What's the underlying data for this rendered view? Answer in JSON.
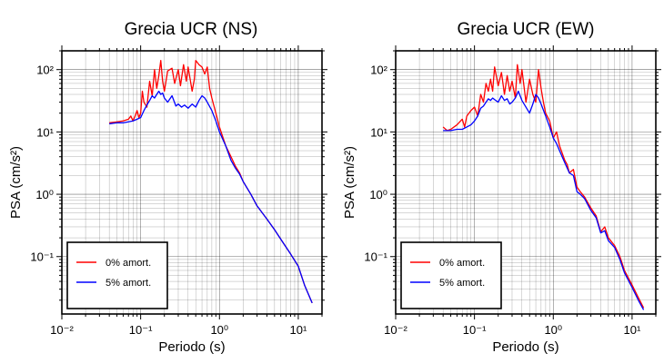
{
  "chart_data": [
    {
      "type": "line",
      "title": "Grecia UCR (NS)",
      "xlabel": "Periodo (s)",
      "ylabel": "PSA (cm/s²)",
      "xscale": "log",
      "yscale": "log",
      "xlim": [
        0.01,
        20
      ],
      "ylim": [
        0.012,
        200
      ],
      "grid": true,
      "legend_position": "bottom-left",
      "xticks": [
        {
          "value": 0.01,
          "label": "10⁻²"
        },
        {
          "value": 0.1,
          "label": "10⁻¹"
        },
        {
          "value": 1,
          "label": "10⁰"
        },
        {
          "value": 10,
          "label": "10¹"
        }
      ],
      "yticks": [
        {
          "value": 0.1,
          "label": "10⁻¹"
        },
        {
          "value": 1,
          "label": "10⁰"
        },
        {
          "value": 10,
          "label": "10¹"
        },
        {
          "value": 100,
          "label": "10²"
        }
      ],
      "series": [
        {
          "name": "0% amort.",
          "color": "#ff0000",
          "points": [
            [
              0.04,
              14
            ],
            [
              0.05,
              14.5
            ],
            [
              0.06,
              15
            ],
            [
              0.07,
              16
            ],
            [
              0.075,
              18
            ],
            [
              0.08,
              15
            ],
            [
              0.085,
              18
            ],
            [
              0.09,
              22
            ],
            [
              0.095,
              17
            ],
            [
              0.1,
              20
            ],
            [
              0.105,
              45
            ],
            [
              0.11,
              30
            ],
            [
              0.12,
              25
            ],
            [
              0.13,
              65
            ],
            [
              0.14,
              38
            ],
            [
              0.15,
              100
            ],
            [
              0.16,
              50
            ],
            [
              0.17,
              80
            ],
            [
              0.18,
              140
            ],
            [
              0.19,
              65
            ],
            [
              0.2,
              45
            ],
            [
              0.22,
              95
            ],
            [
              0.25,
              105
            ],
            [
              0.27,
              60
            ],
            [
              0.3,
              100
            ],
            [
              0.32,
              55
            ],
            [
              0.35,
              120
            ],
            [
              0.38,
              65
            ],
            [
              0.4,
              110
            ],
            [
              0.45,
              45
            ],
            [
              0.48,
              70
            ],
            [
              0.5,
              140
            ],
            [
              0.55,
              120
            ],
            [
              0.6,
              110
            ],
            [
              0.65,
              85
            ],
            [
              0.7,
              110
            ],
            [
              0.75,
              50
            ],
            [
              0.8,
              35
            ],
            [
              0.9,
              20
            ],
            [
              1,
              12
            ],
            [
              1.2,
              6
            ],
            [
              1.4,
              4
            ],
            [
              1.6,
              2.8
            ],
            [
              1.8,
              2.2
            ],
            [
              2,
              1.6
            ],
            [
              2.5,
              1
            ],
            [
              3,
              0.65
            ],
            [
              4,
              0.4
            ],
            [
              5,
              0.27
            ],
            [
              6,
              0.19
            ],
            [
              8,
              0.11
            ],
            [
              10,
              0.07
            ],
            [
              12,
              0.035
            ],
            [
              15,
              0.018
            ]
          ]
        },
        {
          "name": "5% amort.",
          "color": "#0000ff",
          "points": [
            [
              0.04,
              13.5
            ],
            [
              0.05,
              14
            ],
            [
              0.06,
              14
            ],
            [
              0.07,
              14.5
            ],
            [
              0.08,
              15
            ],
            [
              0.09,
              16
            ],
            [
              0.1,
              17
            ],
            [
              0.11,
              22
            ],
            [
              0.12,
              27
            ],
            [
              0.13,
              32
            ],
            [
              0.14,
              38
            ],
            [
              0.15,
              35
            ],
            [
              0.16,
              40
            ],
            [
              0.17,
              45
            ],
            [
              0.18,
              40
            ],
            [
              0.19,
              42
            ],
            [
              0.2,
              35
            ],
            [
              0.22,
              30
            ],
            [
              0.25,
              38
            ],
            [
              0.28,
              26
            ],
            [
              0.3,
              28
            ],
            [
              0.33,
              25
            ],
            [
              0.36,
              27
            ],
            [
              0.4,
              24
            ],
            [
              0.45,
              28
            ],
            [
              0.5,
              25
            ],
            [
              0.55,
              32
            ],
            [
              0.6,
              38
            ],
            [
              0.65,
              35
            ],
            [
              0.7,
              30
            ],
            [
              0.8,
              22
            ],
            [
              0.9,
              15
            ],
            [
              1,
              10
            ],
            [
              1.2,
              6
            ],
            [
              1.4,
              3.5
            ],
            [
              1.6,
              2.6
            ],
            [
              1.8,
              2.1
            ],
            [
              2,
              1.6
            ],
            [
              2.5,
              1
            ],
            [
              3,
              0.65
            ],
            [
              4,
              0.4
            ],
            [
              5,
              0.27
            ],
            [
              6,
              0.19
            ],
            [
              8,
              0.11
            ],
            [
              10,
              0.07
            ],
            [
              12,
              0.035
            ],
            [
              15,
              0.018
            ]
          ]
        }
      ]
    },
    {
      "type": "line",
      "title": "Grecia UCR (EW)",
      "xlabel": "Periodo (s)",
      "ylabel": "PSA (cm/s²)",
      "xscale": "log",
      "yscale": "log",
      "xlim": [
        0.01,
        20
      ],
      "ylim": [
        0.012,
        200
      ],
      "grid": true,
      "legend_position": "bottom-left",
      "xticks": [
        {
          "value": 0.01,
          "label": "10⁻²"
        },
        {
          "value": 0.1,
          "label": "10⁻¹"
        },
        {
          "value": 1,
          "label": "10⁰"
        },
        {
          "value": 10,
          "label": "10¹"
        }
      ],
      "yticks": [
        {
          "value": 0.1,
          "label": "10⁻¹"
        },
        {
          "value": 1,
          "label": "10⁰"
        },
        {
          "value": 10,
          "label": "10¹"
        },
        {
          "value": 100,
          "label": "10²"
        }
      ],
      "series": [
        {
          "name": "0% amort.",
          "color": "#ff0000",
          "points": [
            [
              0.04,
              12
            ],
            [
              0.045,
              10.5
            ],
            [
              0.05,
              11
            ],
            [
              0.06,
              13
            ],
            [
              0.07,
              16
            ],
            [
              0.075,
              12
            ],
            [
              0.08,
              18
            ],
            [
              0.09,
              22
            ],
            [
              0.1,
              25
            ],
            [
              0.11,
              18
            ],
            [
              0.12,
              40
            ],
            [
              0.13,
              30
            ],
            [
              0.14,
              60
            ],
            [
              0.15,
              45
            ],
            [
              0.16,
              70
            ],
            [
              0.17,
              45
            ],
            [
              0.18,
              110
            ],
            [
              0.2,
              55
            ],
            [
              0.22,
              90
            ],
            [
              0.24,
              40
            ],
            [
              0.26,
              80
            ],
            [
              0.28,
              45
            ],
            [
              0.3,
              65
            ],
            [
              0.33,
              35
            ],
            [
              0.35,
              120
            ],
            [
              0.38,
              60
            ],
            [
              0.4,
              100
            ],
            [
              0.45,
              30
            ],
            [
              0.5,
              70
            ],
            [
              0.55,
              40
            ],
            [
              0.6,
              30
            ],
            [
              0.65,
              100
            ],
            [
              0.7,
              50
            ],
            [
              0.75,
              30
            ],
            [
              0.8,
              20
            ],
            [
              0.9,
              15
            ],
            [
              1,
              8
            ],
            [
              1.1,
              10
            ],
            [
              1.2,
              6
            ],
            [
              1.4,
              3.5
            ],
            [
              1.5,
              3
            ],
            [
              1.6,
              2.2
            ],
            [
              1.8,
              2.5
            ],
            [
              2,
              1.3
            ],
            [
              2.2,
              1.1
            ],
            [
              2.5,
              0.9
            ],
            [
              3,
              0.6
            ],
            [
              3.5,
              0.45
            ],
            [
              4,
              0.25
            ],
            [
              4.5,
              0.3
            ],
            [
              5,
              0.2
            ],
            [
              6,
              0.15
            ],
            [
              7,
              0.1
            ],
            [
              8,
              0.06
            ],
            [
              10,
              0.035
            ],
            [
              12,
              0.022
            ],
            [
              14,
              0.015
            ]
          ]
        },
        {
          "name": "5% amort.",
          "color": "#0000ff",
          "points": [
            [
              0.04,
              10.5
            ],
            [
              0.05,
              10.5
            ],
            [
              0.06,
              11
            ],
            [
              0.07,
              11
            ],
            [
              0.08,
              12
            ],
            [
              0.09,
              13
            ],
            [
              0.1,
              15
            ],
            [
              0.11,
              18
            ],
            [
              0.12,
              24
            ],
            [
              0.13,
              26
            ],
            [
              0.14,
              30
            ],
            [
              0.15,
              34
            ],
            [
              0.16,
              32
            ],
            [
              0.17,
              35
            ],
            [
              0.18,
              33
            ],
            [
              0.2,
              30
            ],
            [
              0.22,
              38
            ],
            [
              0.24,
              32
            ],
            [
              0.26,
              34
            ],
            [
              0.28,
              28
            ],
            [
              0.3,
              30
            ],
            [
              0.33,
              35
            ],
            [
              0.36,
              45
            ],
            [
              0.4,
              32
            ],
            [
              0.45,
              25
            ],
            [
              0.5,
              20
            ],
            [
              0.55,
              28
            ],
            [
              0.6,
              40
            ],
            [
              0.65,
              35
            ],
            [
              0.7,
              28
            ],
            [
              0.8,
              18
            ],
            [
              0.9,
              12
            ],
            [
              1,
              8
            ],
            [
              1.1,
              6.5
            ],
            [
              1.2,
              5
            ],
            [
              1.4,
              3.2
            ],
            [
              1.6,
              2.2
            ],
            [
              1.8,
              2
            ],
            [
              2,
              1.1
            ],
            [
              2.2,
              1
            ],
            [
              2.5,
              0.85
            ],
            [
              3,
              0.55
            ],
            [
              3.5,
              0.42
            ],
            [
              4,
              0.24
            ],
            [
              4.5,
              0.26
            ],
            [
              5,
              0.18
            ],
            [
              6,
              0.14
            ],
            [
              7,
              0.09
            ],
            [
              8,
              0.055
            ],
            [
              10,
              0.032
            ],
            [
              12,
              0.02
            ],
            [
              14,
              0.014
            ]
          ]
        }
      ]
    }
  ]
}
